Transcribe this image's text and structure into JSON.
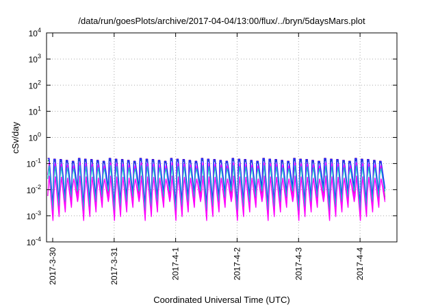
{
  "chart_data": {
    "type": "line",
    "title": "/data/run/goesPlots/archive/2017-04-04/13:00/flux/../bryn/5daysMars.plot",
    "xlabel": "Coordinated Universal Time (UTC)",
    "ylabel": "cSv/day",
    "yscale": "log",
    "ylim": [
      0.0001,
      10000
    ],
    "y_ticks": [
      {
        "base": "10",
        "exp": "-4"
      },
      {
        "base": "10",
        "exp": "-3"
      },
      {
        "base": "10",
        "exp": "-2"
      },
      {
        "base": "10",
        "exp": "-1"
      },
      {
        "base": "10",
        "exp": "0"
      },
      {
        "base": "10",
        "exp": "1"
      },
      {
        "base": "10",
        "exp": "2"
      },
      {
        "base": "10",
        "exp": "3"
      },
      {
        "base": "10",
        "exp": "4"
      }
    ],
    "x_tick_labels": [
      "2017-3-30",
      "2017-3-31",
      "2017-4-1",
      "2017-4-2",
      "2017-4-3",
      "2017-4-4"
    ],
    "x_range_days": [
      -0.1,
      5.6
    ],
    "grid": true,
    "pattern": {
      "period_days": 0.1,
      "teeth": 55,
      "peak_values": [
        0.155,
        0.145,
        0.14,
        0.13,
        0.12
      ],
      "trough_values": [
        0.00085,
        0.0012,
        0.0018,
        0.0027,
        0.0045
      ]
    },
    "series": [
      {
        "color": "#ff0000",
        "peak_scale": 1.03,
        "trough_scale": 0.95,
        "lag": 0.0,
        "width": 1.1
      },
      {
        "color": "#00a000",
        "peak_scale": 0.95,
        "trough_scale": 1.15,
        "lag": 0.04,
        "width": 1.1
      },
      {
        "color": "#1e1eff",
        "peak_scale": 1.0,
        "trough_scale": 2.4,
        "lag": 0.0,
        "width": 1.6
      },
      {
        "color": "#ff00ff",
        "peak_scale": 0.7,
        "trough_scale": 0.9,
        "lag": 0.22,
        "width": 1.3
      },
      {
        "color": "#00c8c8",
        "peak_scale": 0.55,
        "trough_scale": 1.9,
        "lag": 0.3,
        "width": 1.2
      },
      {
        "color": "#ff00ff",
        "peak_scale": 0.22,
        "trough_scale": 0.75,
        "lag": 0.45,
        "width": 1.3
      }
    ]
  }
}
